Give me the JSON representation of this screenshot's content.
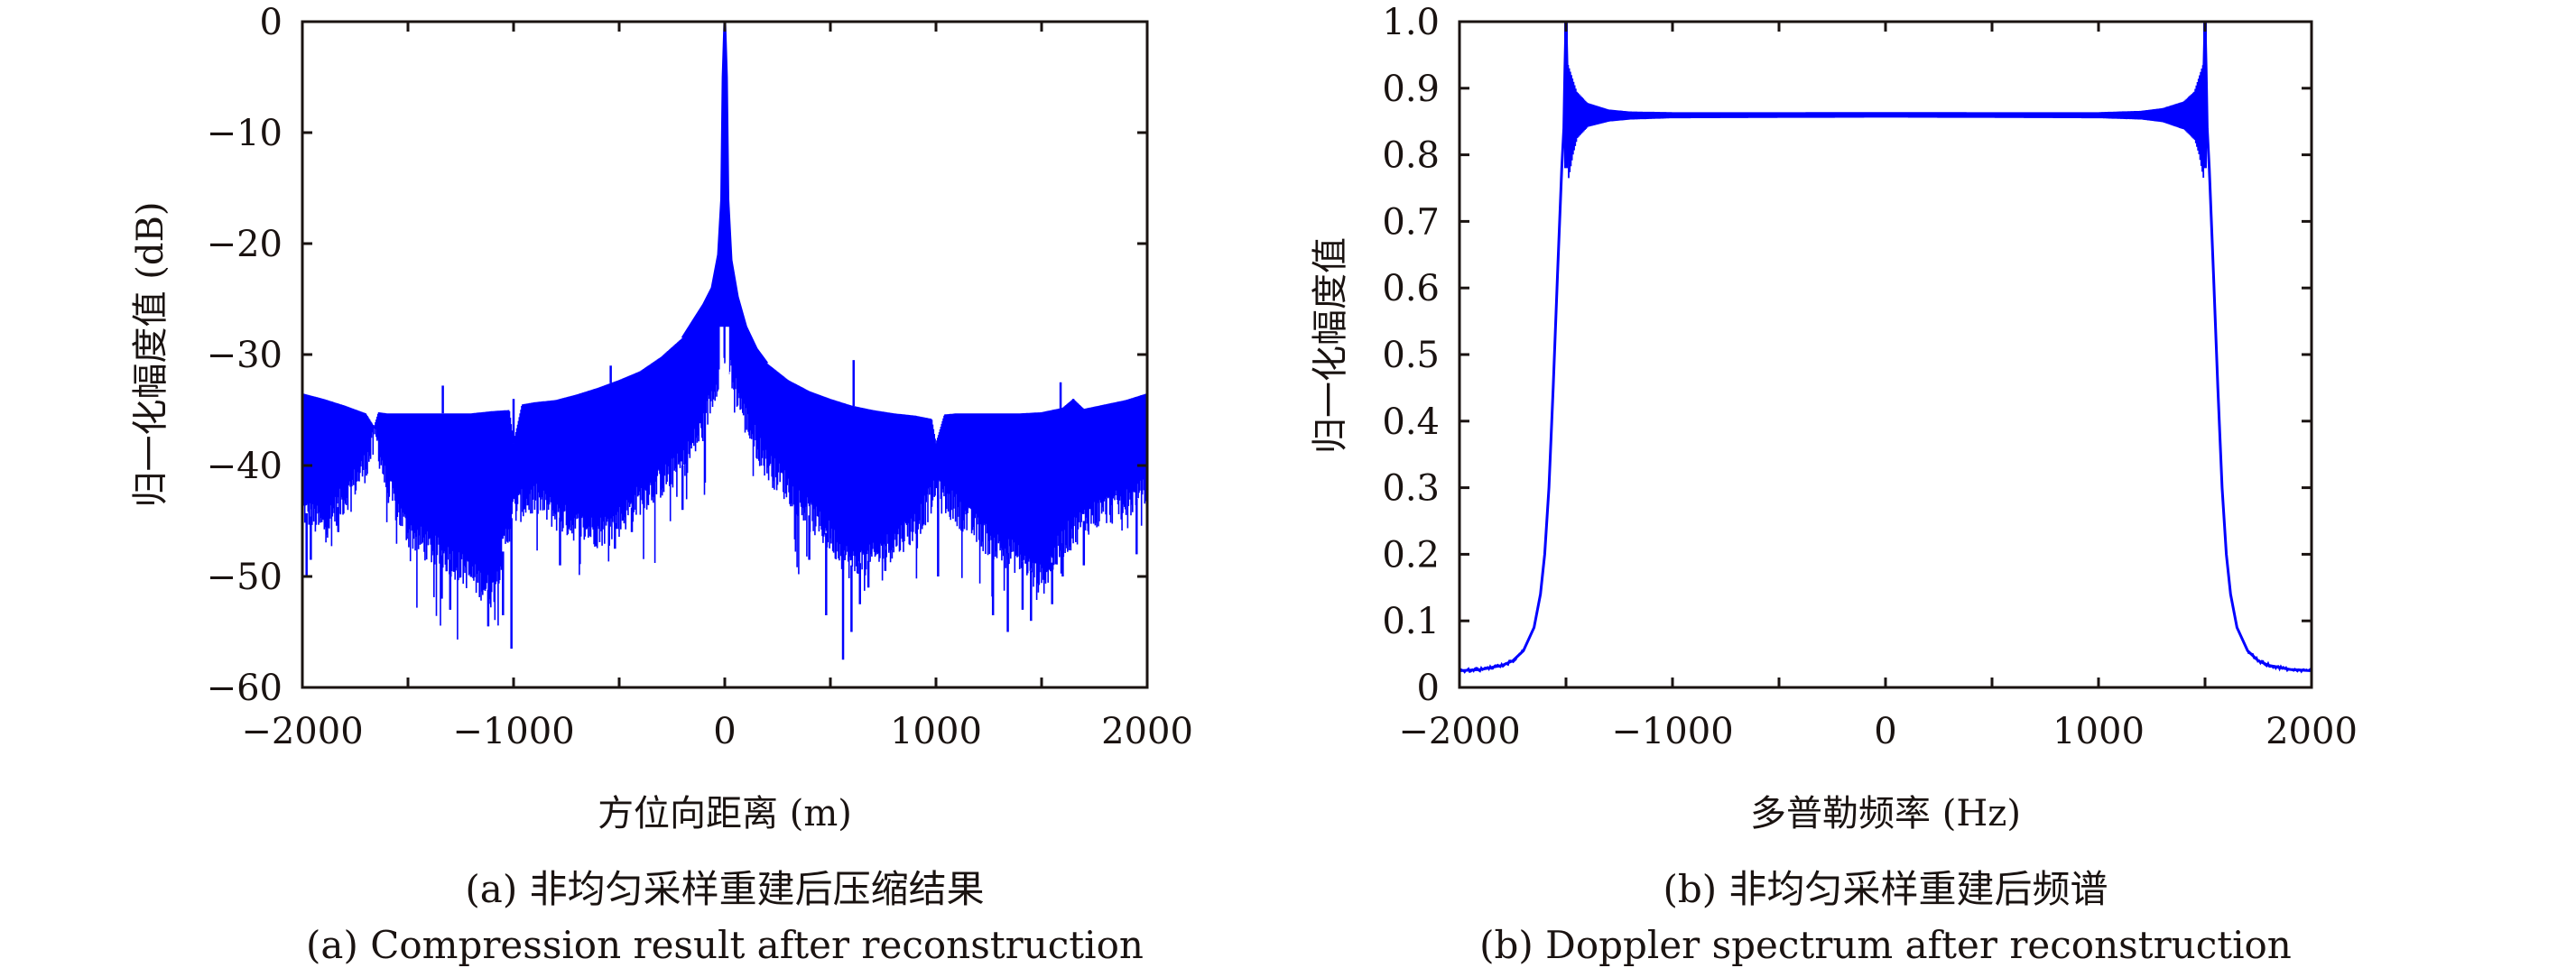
{
  "figure": {
    "series_color": "#0000ff",
    "axis_color": "#1a1311"
  },
  "chart_data": [
    {
      "type": "line",
      "panel": "a",
      "title": "",
      "caption_cn": "(a) 非均匀采样重建后压缩结果",
      "caption_en": "(a) Compression result after reconstruction",
      "xlabel": "方位向距离 (m)",
      "ylabel": "归一化幅度值 (dB)",
      "xlim": [
        -2000,
        2000
      ],
      "ylim": [
        -60,
        0
      ],
      "xticks": [
        -2000,
        -1500,
        -1000,
        -500,
        0,
        500,
        1000,
        1500,
        2000
      ],
      "xtick_labels": [
        "−2000",
        "",
        "−1000",
        "",
        "0",
        "",
        "1000",
        "",
        "2000"
      ],
      "yticks": [
        0,
        -10,
        -20,
        -30,
        -40,
        -50,
        -60
      ],
      "ytick_labels": [
        "0",
        "−10",
        "−20",
        "−30",
        "−40",
        "−50",
        "−60"
      ],
      "grid": false,
      "legend": "none",
      "series": [
        {
          "name": "upper envelope",
          "x": [
            -2000,
            -1900,
            -1800,
            -1700,
            -1660,
            -1640,
            -1600,
            -1500,
            -1400,
            -1300,
            -1200,
            -1100,
            -1020,
            -1000,
            -960,
            -900,
            -800,
            -700,
            -600,
            -500,
            -400,
            -300,
            -200,
            -150,
            -100,
            -60,
            -30,
            -15,
            -8,
            0,
            8,
            15,
            30,
            60,
            100,
            150,
            200,
            300,
            400,
            500,
            600,
            700,
            800,
            900,
            980,
            1000,
            1040,
            1100,
            1200,
            1300,
            1400,
            1500,
            1600,
            1650,
            1700,
            1800,
            1900,
            2000
          ],
          "y": [
            -33.5,
            -34.0,
            -34.6,
            -35.3,
            -36.5,
            -35.2,
            -35.3,
            -35.3,
            -35.3,
            -35.3,
            -35.3,
            -35.1,
            -35.0,
            -38.0,
            -34.5,
            -34.3,
            -34.1,
            -33.6,
            -33.0,
            -32.3,
            -31.5,
            -30.2,
            -28.5,
            -27.0,
            -25.5,
            -24.0,
            -21.0,
            -16.0,
            -5.0,
            0.0,
            -5.0,
            -16.0,
            -21.5,
            -24.8,
            -27.5,
            -29.5,
            -30.8,
            -32.3,
            -33.3,
            -34.0,
            -34.6,
            -35.0,
            -35.3,
            -35.5,
            -35.8,
            -38.0,
            -35.4,
            -35.3,
            -35.3,
            -35.3,
            -35.3,
            -35.2,
            -34.8,
            -34.0,
            -34.9,
            -34.5,
            -34.1,
            -33.5
          ]
        },
        {
          "name": "lower trough envelope",
          "x": [
            -2000,
            -1900,
            -1800,
            -1700,
            -1650,
            -1600,
            -1500,
            -1400,
            -1300,
            -1200,
            -1100,
            -1000,
            -900,
            -800,
            -700,
            -600,
            -500,
            -400,
            -300,
            -200,
            -100,
            -50,
            0,
            50,
            100,
            200,
            300,
            400,
            500,
            600,
            700,
            800,
            900,
            1000,
            1100,
            1200,
            1300,
            1400,
            1500,
            1600,
            1700,
            1800,
            1900,
            2000
          ],
          "y": [
            -44.0,
            -45.5,
            -43.0,
            -40.0,
            -37.5,
            -42.0,
            -46.0,
            -47.5,
            -48.5,
            -50.0,
            -51.5,
            -44.0,
            -43.0,
            -44.5,
            -45.5,
            -46.0,
            -45.0,
            -43.0,
            -41.5,
            -40.0,
            -36.5,
            -33.0,
            -30.0,
            -33.0,
            -36.0,
            -40.0,
            -42.0,
            -44.5,
            -46.5,
            -49.0,
            -48.5,
            -47.0,
            -45.5,
            -42.5,
            -44.0,
            -46.0,
            -47.5,
            -48.5,
            -50.5,
            -47.0,
            -45.0,
            -44.0,
            -43.5,
            -42.5
          ]
        },
        {
          "name": "deep nulls",
          "x": [
            -1980,
            -1960,
            -1830,
            -1340,
            -1300,
            -1120,
            -1050,
            -1010,
            -780,
            -520,
            -440,
            -200,
            400,
            480,
            560,
            600,
            640,
            680,
            760,
            1010,
            1270,
            1340,
            1410,
            1450,
            1550,
            1600,
            1700,
            1950
          ],
          "y": [
            -50.0,
            -48.5,
            -46.0,
            -52.0,
            -53.0,
            -54.5,
            -53.5,
            -56.5,
            -49.0,
            -47.5,
            -46.0,
            -44.0,
            -48.5,
            -53.5,
            -57.5,
            -55.0,
            -52.5,
            -51.0,
            -49.5,
            -50.0,
            -53.5,
            -55.0,
            -53.0,
            -54.0,
            -52.5,
            -50.0,
            -49.0,
            -48.0
          ]
        },
        {
          "name": "isolated spikes",
          "x": [
            -1335,
            -1000,
            -540,
            40,
            610,
            1590,
            1650
          ],
          "y": [
            -32.8,
            -34.0,
            -31.0,
            -30.0,
            -30.5,
            -32.5,
            -34.3
          ]
        }
      ]
    },
    {
      "type": "line",
      "panel": "b",
      "title": "",
      "caption_cn": "(b) 非均匀采样重建后频谱",
      "caption_en": "(b) Doppler spectrum after reconstruction",
      "xlabel": "多普勒频率 (Hz)",
      "ylabel": "归一化幅度值",
      "xlim": [
        -2000,
        2000
      ],
      "ylim": [
        0,
        1.0
      ],
      "xticks": [
        -2000,
        -1500,
        -1000,
        -500,
        0,
        500,
        1000,
        1500,
        2000
      ],
      "xtick_labels": [
        "−2000",
        "",
        "−1000",
        "",
        "0",
        "",
        "1000",
        "",
        "2000"
      ],
      "yticks": [
        0,
        0.1,
        0.2,
        0.3,
        0.4,
        0.5,
        0.6,
        0.7,
        0.8,
        0.9,
        1.0
      ],
      "ytick_labels": [
        "0",
        "0.1",
        "0.2",
        "0.3",
        "0.4",
        "0.5",
        "0.6",
        "0.7",
        "0.8",
        "0.9",
        "1.0"
      ],
      "grid": false,
      "legend": "none",
      "series": [
        {
          "name": "spectrum mean",
          "x": [
            -2000,
            -1900,
            -1800,
            -1750,
            -1700,
            -1650,
            -1620,
            -1600,
            -1580,
            -1560,
            -1540,
            -1520,
            -1510,
            -1505,
            -1500,
            -1495,
            -1490,
            -1470,
            -1450,
            -1400,
            -1300,
            -1200,
            -1000,
            -500,
            0,
            500,
            1000,
            1200,
            1300,
            1400,
            1450,
            1470,
            1490,
            1495,
            1500,
            1505,
            1510,
            1520,
            1540,
            1560,
            1580,
            1600,
            1620,
            1650,
            1700,
            1750,
            1800,
            1900,
            2000
          ],
          "y": [
            0.025,
            0.027,
            0.033,
            0.04,
            0.055,
            0.09,
            0.14,
            0.2,
            0.3,
            0.45,
            0.62,
            0.78,
            0.84,
            0.93,
            1.0,
            0.93,
            0.88,
            0.86,
            0.862,
            0.861,
            0.86,
            0.86,
            0.86,
            0.859,
            0.86,
            0.86,
            0.86,
            0.86,
            0.861,
            0.862,
            0.862,
            0.86,
            0.88,
            0.93,
            1.0,
            0.93,
            0.84,
            0.78,
            0.62,
            0.45,
            0.3,
            0.2,
            0.14,
            0.09,
            0.055,
            0.04,
            0.033,
            0.027,
            0.025
          ]
        },
        {
          "name": "ripple envelope",
          "x": [
            -1490,
            -1470,
            -1450,
            -1400,
            -1300,
            -1200,
            -1000,
            0,
            1000,
            1200,
            1300,
            1400,
            1450,
            1470,
            1490
          ],
          "upper": [
            0.935,
            0.915,
            0.895,
            0.878,
            0.868,
            0.865,
            0.864,
            0.864,
            0.864,
            0.866,
            0.87,
            0.88,
            0.895,
            0.915,
            0.935
          ],
          "lower": [
            0.765,
            0.8,
            0.825,
            0.842,
            0.85,
            0.853,
            0.855,
            0.856,
            0.855,
            0.853,
            0.849,
            0.838,
            0.822,
            0.8,
            0.765
          ]
        }
      ]
    }
  ]
}
